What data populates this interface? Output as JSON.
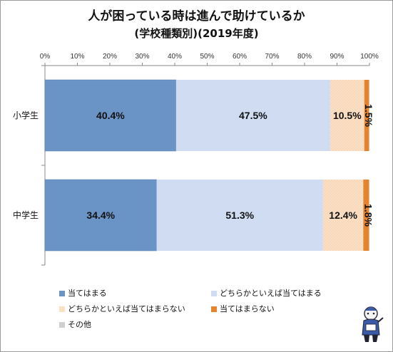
{
  "title_line1": "人が困っている時は進んで助けているか",
  "title_line2": "(学校種類別)(2019年度)",
  "chart_data": {
    "type": "bar",
    "orientation": "horizontal",
    "stacked": "percent",
    "categories": [
      "小学生",
      "中学生"
    ],
    "series": [
      {
        "name": "当てはまる",
        "color": "#6a93c6",
        "values": [
          40.4,
          34.4
        ]
      },
      {
        "name": "どちらかといえば当てはまる",
        "color": "#cfdcf2",
        "values": [
          47.5,
          51.3
        ]
      },
      {
        "name": "どちらかといえば当てはまらない",
        "color": "#fbe0c6",
        "values": [
          10.5,
          12.4
        ]
      },
      {
        "name": "当てはまらない",
        "color": "#e6832f",
        "values": [
          1.5,
          1.8
        ]
      },
      {
        "name": "その他",
        "color": "#d0d0d0",
        "values": [
          0.0,
          0.0
        ]
      }
    ],
    "data_labels": [
      [
        "40.4%",
        "47.5%",
        "10.5%",
        "1.5%"
      ],
      [
        "34.4%",
        "51.3%",
        "12.4%",
        "1.8%"
      ]
    ],
    "xticks": [
      "0%",
      "10%",
      "20%",
      "30%",
      "40%",
      "50%",
      "60%",
      "70%",
      "80%",
      "90%",
      "100%"
    ],
    "xlim": [
      0,
      100
    ],
    "legend_position": "bottom",
    "grid": false
  }
}
